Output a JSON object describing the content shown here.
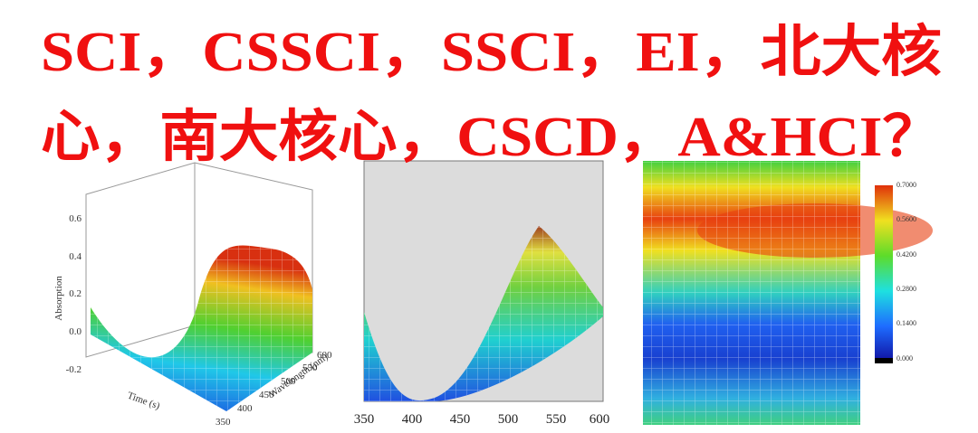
{
  "headline": {
    "lines": [
      "SCI，CSSCI，SSCI，EI，北大核",
      "心，南大核心，CSCD，A&HCI？"
    ]
  },
  "plots": [
    {
      "y_label": "Absorption",
      "x_label": "Time (s)",
      "z_label": "Wavelength (nm)",
      "yticks": [
        "0.6",
        "0.4",
        "0.2",
        "0.0",
        "-0.2"
      ],
      "zticks": [
        "350",
        "400",
        "450",
        "500",
        "550",
        "600"
      ]
    },
    {
      "xticks": [
        "350",
        "400",
        "450",
        "500",
        "550",
        "600"
      ]
    },
    {
      "colorbar_ticks": [
        "0.7000",
        "0.5600",
        "0.4200",
        "0.2800",
        "0.1400",
        "0.000"
      ]
    }
  ]
}
